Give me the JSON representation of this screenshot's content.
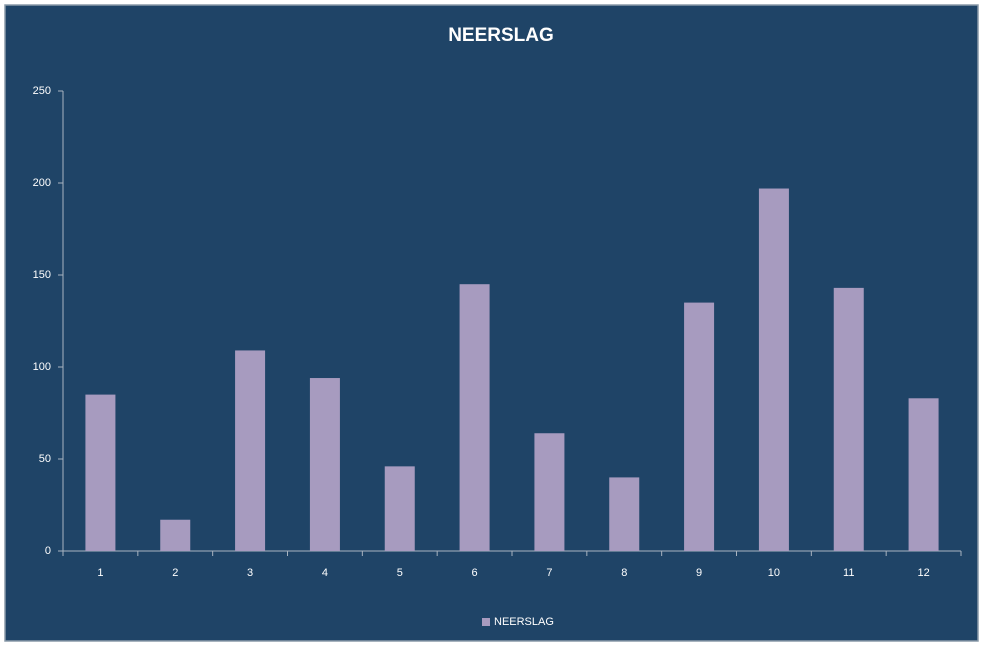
{
  "chart_data": {
    "type": "bar",
    "title": "NEERSLAG",
    "categories": [
      "1",
      "2",
      "3",
      "4",
      "5",
      "6",
      "7",
      "8",
      "9",
      "10",
      "11",
      "12"
    ],
    "series": [
      {
        "name": "NEERSLAG",
        "color": "#a79bbf",
        "values": [
          85,
          17,
          109,
          94,
          46,
          145,
          64,
          40,
          135,
          197,
          143,
          83
        ]
      }
    ],
    "ylim": [
      0,
      250
    ],
    "yticks": [
      0,
      50,
      100,
      150,
      200,
      250
    ],
    "grid": false,
    "legend": "bottom"
  }
}
